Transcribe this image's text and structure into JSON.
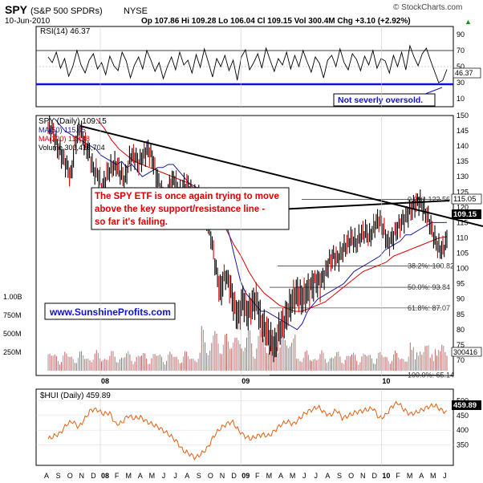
{
  "header": {
    "symbol": "SPY",
    "name": "(S&P 500 SPDRs)",
    "exchange": "NYSE",
    "date": "10-Jun-2010",
    "ohlc": "Op 107.86  Hi 109.28  Lo 106.04  Cl 109.15  Vol 300.4M  Chg +3.10 (+2.92%)",
    "up_arrow": "▲",
    "brand": "© StockCharts.com"
  },
  "rsi_panel": {
    "label": "RSI(14) 46.37",
    "y_ticks": [
      "90",
      "70",
      "50",
      "30",
      "10"
    ],
    "tick_values": [
      90,
      70,
      50,
      30,
      10
    ],
    "current_tag": "46.37",
    "annotation": "Not severly oversold.",
    "colors": {
      "line": "#000000",
      "support_line": "#1010cc",
      "annotation_text": "#1010cc"
    }
  },
  "price_panel": {
    "legend": {
      "spy": "SPY (Daily) 109.15",
      "ma50": "MA(50) 115.05",
      "ma200": "MA(200) 110.38",
      "volume": "Volume 300,416,704"
    },
    "y_ticks": [
      "150",
      "145",
      "140",
      "135",
      "130",
      "125",
      "120",
      "115",
      "110",
      "105",
      "100",
      "95",
      "90",
      "85",
      "80",
      "75",
      "70"
    ],
    "tick_values": [
      150,
      145,
      140,
      135,
      130,
      125,
      120,
      115,
      110,
      105,
      100,
      95,
      90,
      85,
      80,
      75,
      70
    ],
    "volume_ticks": [
      "1.00B",
      "750M",
      "500M",
      "250M"
    ],
    "volume_tick_values": [
      1000,
      750,
      500,
      250
    ],
    "tags": {
      "ma50": "115.05",
      "close": "109.15",
      "ma200": "110.38",
      "volume": "300416"
    },
    "fib_levels": [
      {
        "label": "0.0%: 122.56",
        "value": 122.56
      },
      {
        "label": "38.2%: 100.82",
        "value": 100.82
      },
      {
        "label": "50.0%: 93.84",
        "value": 93.84
      },
      {
        "label": "61.8%: 87.07",
        "value": 87.07
      },
      {
        "label": "100.0%: 65.14",
        "value": 65.14
      }
    ],
    "annotation": "The SPY ETF is once again trying to move above the key support/resistance line - so far it's failing.",
    "website": "www.SunshineProfits.com",
    "colors": {
      "ma50": "#1a1a9a",
      "ma200": "#dd0000",
      "candles": "#000000",
      "volume": "#c86060",
      "annotation_text": "#dd0000",
      "website_text": "#1010cc"
    }
  },
  "hui_panel": {
    "label": "$HUI (Daily) 459.89",
    "y_ticks": [
      "500",
      "450",
      "400",
      "350"
    ],
    "tick_values": [
      500,
      450,
      400,
      350
    ],
    "current_tag": "459.89",
    "colors": {
      "line": "#e06010"
    }
  },
  "x_axis": {
    "labels": [
      "A",
      "S",
      "O",
      "N",
      "D",
      "08",
      "F",
      "M",
      "A",
      "M",
      "J",
      "J",
      "A",
      "S",
      "O",
      "N",
      "D",
      "09",
      "F",
      "M",
      "A",
      "M",
      "J",
      "J",
      "A",
      "S",
      "O",
      "N",
      "D",
      "10",
      "F",
      "M",
      "A",
      "M",
      "J"
    ]
  },
  "chart_data": [
    {
      "type": "line",
      "title": "RSI(14) 46.37",
      "ylim": [
        0,
        100
      ],
      "series": [
        {
          "name": "RSI(14)",
          "values": [
            62,
            55,
            68,
            48,
            60,
            38,
            50,
            70,
            52,
            42,
            58,
            66,
            47,
            55,
            40,
            63,
            51,
            45,
            68,
            57,
            36,
            52,
            62,
            47,
            70,
            58,
            44,
            55,
            35,
            50,
            62,
            46,
            68,
            52,
            58,
            42,
            65,
            49,
            72,
            55,
            37,
            60,
            50,
            64,
            45,
            58,
            33,
            62,
            71,
            46,
            55,
            66,
            48,
            73,
            58,
            44,
            60,
            52,
            68,
            47,
            64,
            50,
            70,
            56,
            43,
            62,
            54,
            36,
            58,
            64,
            50,
            72,
            55,
            46,
            66,
            59,
            45,
            63,
            52,
            70,
            48,
            60,
            57,
            42,
            64,
            50,
            68,
            46,
            76,
            62,
            51,
            66,
            73,
            58,
            44,
            30,
            33,
            46.37
          ]
        }
      ]
    },
    {
      "type": "line",
      "title": "SPY (Daily) 109.15",
      "ylim": [
        65,
        150
      ],
      "x_range": [
        "2007-08",
        "2010-06-10"
      ],
      "series": [
        {
          "name": "SPY (Daily)",
          "values": [
            146,
            145,
            140,
            137,
            134,
            130,
            141,
            146,
            141,
            138,
            132,
            131,
            126,
            131,
            133,
            134,
            131,
            129,
            136,
            137,
            134,
            137,
            139,
            136,
            130,
            125,
            122,
            128,
            129,
            124,
            127,
            127,
            122,
            124,
            120,
            116,
            110,
            100,
            92,
            98,
            95,
            88,
            84,
            90,
            85,
            88,
            90,
            82,
            80,
            77,
            74,
            80,
            82,
            86,
            90,
            92,
            90,
            92,
            94,
            96,
            95,
            98,
            102,
            104,
            103,
            106,
            108,
            110,
            108,
            111,
            112,
            110,
            114,
            116,
            113,
            108,
            110,
            113,
            115,
            117,
            119,
            121,
            122,
            119,
            116,
            111,
            107,
            106,
            109.15
          ]
        },
        {
          "name": "MA(50)",
          "values": [
            149,
            147,
            145,
            144,
            143,
            142,
            141,
            140,
            139,
            137,
            136,
            135,
            134,
            135,
            133,
            134,
            132,
            130,
            131,
            132,
            133,
            133,
            134,
            134,
            132,
            130,
            128,
            127,
            126,
            125,
            124,
            123,
            120,
            116,
            110,
            103,
            96,
            92,
            90,
            88,
            86,
            86,
            85,
            84,
            83,
            82,
            81,
            80,
            82,
            86,
            88,
            90,
            91,
            92,
            93,
            94,
            95,
            97,
            99,
            100,
            101,
            102,
            103,
            104,
            106,
            107,
            108,
            109,
            111,
            111,
            112,
            113,
            114,
            115,
            115,
            115,
            115.05
          ]
        },
        {
          "name": "MA(200)",
          "values": [
            149,
            146,
            142,
            139,
            137,
            135,
            134,
            133,
            132,
            131,
            130,
            129,
            128,
            126,
            124,
            121,
            118,
            113,
            108,
            104,
            99,
            95,
            92,
            90,
            88,
            87,
            86,
            86,
            87,
            88,
            89,
            91,
            93,
            95,
            97,
            99,
            100,
            101,
            102,
            104,
            105,
            106,
            107,
            108,
            109,
            110,
            110.38
          ]
        }
      ]
    },
    {
      "type": "line",
      "title": "$HUI (Daily) 459.89",
      "ylim": [
        300,
        550
      ],
      "series": [
        {
          "name": "$HUI (Daily)",
          "values": [
            370,
            380,
            390,
            420,
            430,
            410,
            440,
            470,
            470,
            455,
            460,
            420,
            425,
            450,
            440,
            445,
            430,
            420,
            410,
            395,
            380,
            360,
            330,
            320,
            305,
            320,
            340,
            380,
            405,
            420,
            430,
            400,
            380,
            370,
            380,
            385,
            380,
            400,
            420,
            430,
            420,
            440,
            460,
            470,
            480,
            460,
            450,
            470,
            440,
            450,
            460,
            465,
            470,
            475,
            440,
            450,
            480,
            495,
            470,
            455,
            460,
            470,
            480,
            485,
            470,
            459.89
          ]
        }
      ]
    }
  ]
}
